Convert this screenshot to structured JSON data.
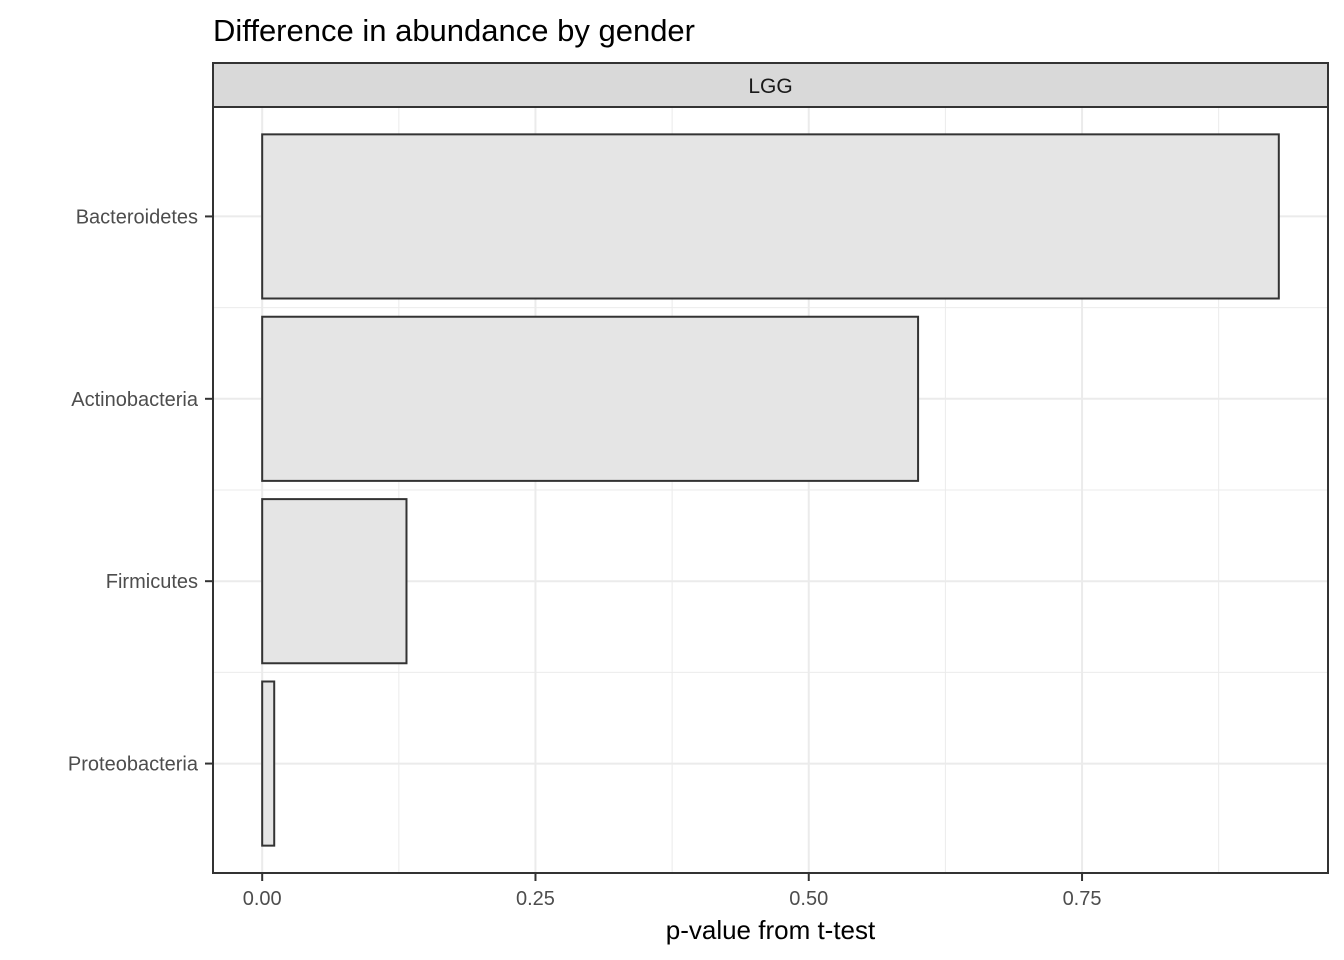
{
  "chart_data": {
    "type": "bar",
    "orientation": "horizontal",
    "title": "Difference in abundance by gender",
    "facet": "LGG",
    "xlabel": "p-value from t-test",
    "ylabel": "",
    "categories": [
      "Bacteroidetes",
      "Actinobacteria",
      "Firmicutes",
      "Proteobacteria"
    ],
    "values": [
      0.93,
      0.6,
      0.132,
      0.011
    ],
    "xlim": [
      -0.045,
      0.975
    ],
    "xticks": [
      0.0,
      0.25,
      0.5,
      0.75
    ],
    "xtick_labels": [
      "0.00",
      "0.25",
      "0.50",
      "0.75"
    ],
    "bar_fill": "#e5e5e5",
    "bar_stroke": "#333333",
    "strip_fill": "#d9d9d9",
    "grid": true,
    "legend": "none"
  }
}
